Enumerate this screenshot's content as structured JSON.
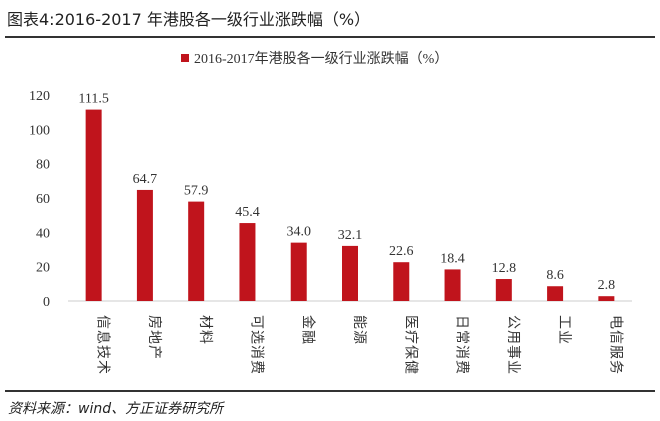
{
  "title": "图表4:2016-2017 年港股各一级行业涨跌幅（%）",
  "source": "资料来源：wind、方正证券研究所",
  "chart_data": {
    "type": "bar",
    "title": "",
    "categories": [
      "信息技术",
      "房地产",
      "材料",
      "可选消费",
      "金融",
      "能源",
      "医疗保健",
      "日常消费",
      "公用事业",
      "工业",
      "电信服务"
    ],
    "series": [
      {
        "name": "2016-2017年港股各一级行业涨跌幅（%）",
        "values": [
          111.5,
          64.7,
          57.9,
          45.4,
          34.0,
          32.1,
          22.6,
          18.4,
          12.8,
          8.6,
          2.8
        ],
        "color": "#c0141c"
      }
    ],
    "yticks": [
      0,
      20,
      40,
      60,
      80,
      100,
      120
    ],
    "ylim": [
      0,
      120
    ],
    "grid": false,
    "legend": "top-center",
    "data_labels": true
  }
}
